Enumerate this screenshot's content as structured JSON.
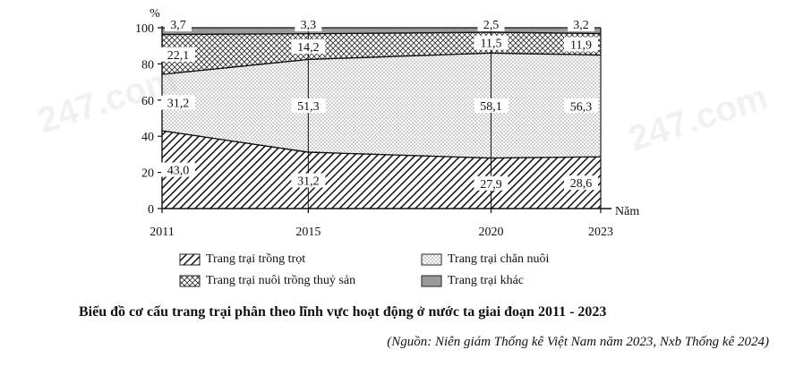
{
  "chart_data": {
    "type": "area",
    "stacked": true,
    "percent": true,
    "x": [
      2011,
      2015,
      2020,
      2023
    ],
    "x_tick_labels": [
      "2011",
      "2015",
      "2020",
      "2023"
    ],
    "y_ticks": [
      "0",
      "20",
      "40",
      "60",
      "80",
      "100"
    ],
    "ylim": [
      0,
      100
    ],
    "y_unit_label": "%",
    "x_unit_label": "Năm",
    "series": [
      {
        "name": "Trang trại trồng trọt",
        "values": [
          43.0,
          31.2,
          27.9,
          28.6
        ],
        "labels": [
          "43,0",
          "31,2",
          "27,9",
          "28,6"
        ],
        "pattern": "diagonal-hatch"
      },
      {
        "name": "Trang trại chăn nuôi",
        "values": [
          31.2,
          51.3,
          58.1,
          56.3
        ],
        "labels": [
          "31,2",
          "51,3",
          "58,1",
          "56,3"
        ],
        "pattern": "dots"
      },
      {
        "name": "Trang trại nuôi trồng thuỷ sản",
        "values": [
          22.1,
          14.2,
          11.5,
          11.9
        ],
        "labels": [
          "22,1",
          "14,2",
          "11,5",
          "11,9"
        ],
        "pattern": "cross-hatch"
      },
      {
        "name": "Trang trại khác",
        "values": [
          3.7,
          3.3,
          2.5,
          3.2
        ],
        "labels": [
          "3,7",
          "3,3",
          "2,5",
          "3,2"
        ],
        "pattern": "solid-grey"
      }
    ],
    "legend_position": "bottom",
    "grid": false
  },
  "legend_order": [
    0,
    1,
    2,
    3
  ],
  "caption": "Biểu đồ cơ cấu trang trại phân theo lĩnh vực hoạt động ở nước ta giai đoạn 2011 - 2023",
  "source": "(Nguồn: Niên giám Thống kê Việt Nam năm 2023, Nxb Thống kê 2024)",
  "watermark": "247.com",
  "colors": {
    "ink": "#111111",
    "khac_fill": "#9a9a9a",
    "dot": "#555555"
  }
}
